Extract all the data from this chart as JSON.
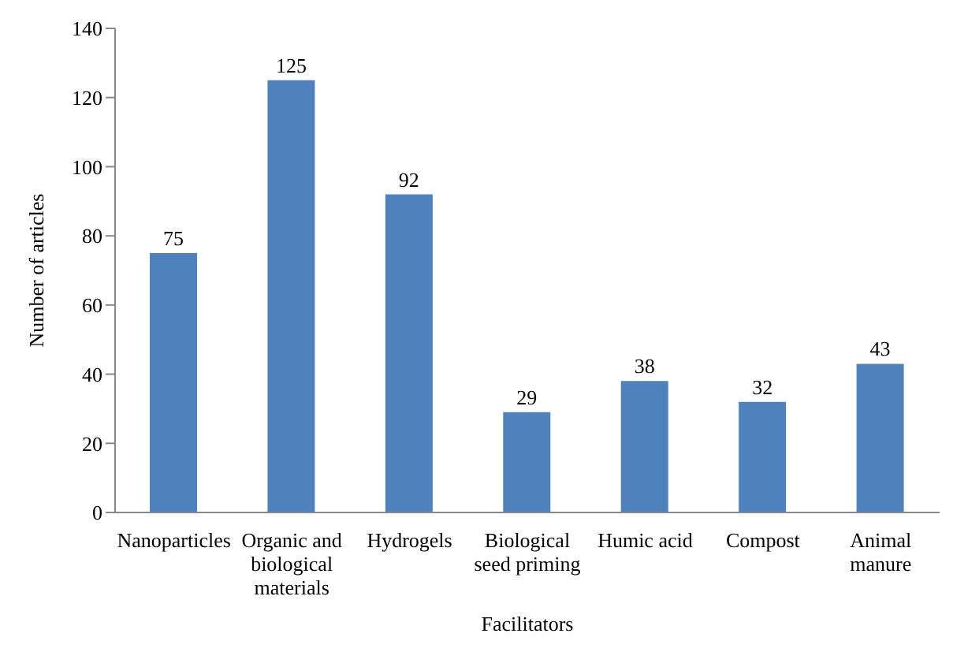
{
  "chart_data": {
    "type": "bar",
    "xlabel": "Facilitators",
    "ylabel": "Number of articles",
    "categories": [
      "Nanoparticles",
      "Organic and biological materials",
      "Hydrogels",
      "Biological seed priming",
      "Humic acid",
      "Compost",
      "Animal manure"
    ],
    "values": [
      75,
      125,
      92,
      29,
      38,
      32,
      43
    ],
    "color": "#4f81bd",
    "ylim": [
      0,
      140
    ],
    "yticks": [
      0,
      20,
      40,
      60,
      80,
      100,
      120,
      140
    ],
    "grid": false,
    "data_labels": true
  }
}
